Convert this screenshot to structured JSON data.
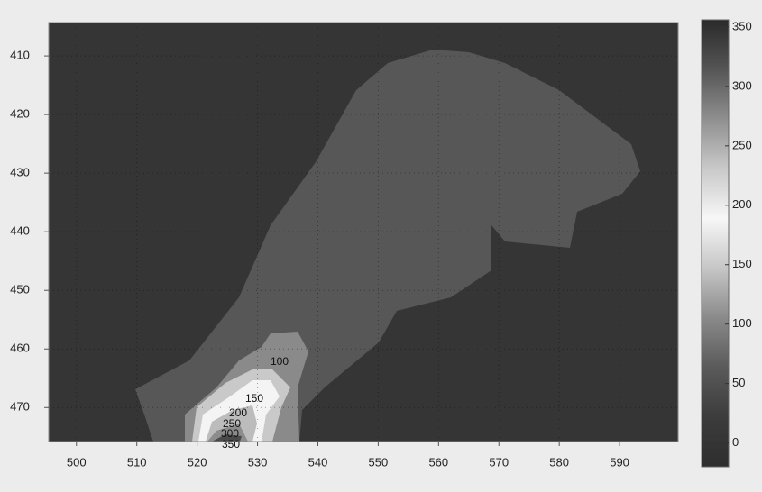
{
  "chart_data": {
    "type": "contour",
    "xlim": [
      495.4,
      599.7
    ],
    "xticks": [
      500,
      510,
      520,
      530,
      540,
      550,
      560,
      570,
      580,
      590
    ],
    "ylim": [
      404.3,
      475.8
    ],
    "yticks": [
      410,
      420,
      430,
      440,
      450,
      460,
      470
    ],
    "y_reversed": true,
    "grid": true,
    "background_color": "#353535",
    "levels": [
      {
        "value": 50,
        "color": "#575757"
      },
      {
        "value": 100,
        "color": "#8a8a8a"
      },
      {
        "value": 150,
        "color": "#c9c9c9"
      },
      {
        "value": 200,
        "color": "#f4f4f4"
      },
      {
        "value": 250,
        "color": "#bcbcbc"
      },
      {
        "value": 300,
        "color": "#8c8c8c"
      },
      {
        "value": 350,
        "color": "#4a4a4a"
      }
    ],
    "colorbar": {
      "lim": [
        -20,
        356
      ],
      "ticks": [
        0,
        50,
        100,
        150,
        200,
        250,
        300,
        350
      ],
      "colors": [
        "#2e2e2e",
        "#3c3c3c",
        "#5a5a5a",
        "#8a8a8a",
        "#c6c6c6",
        "#f7f7f7",
        "#c9c9c9",
        "#8f8f8f",
        "#555555",
        "#2a2a2a"
      ]
    }
  }
}
